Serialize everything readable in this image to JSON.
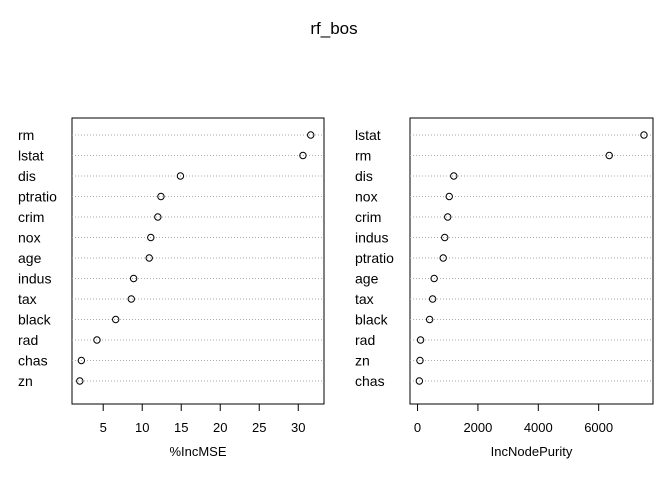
{
  "chart_data": {
    "type": "dotchart",
    "title": "rf_bos",
    "grid": "dotted-horizontal",
    "panels": [
      {
        "xlabel": "%IncMSE",
        "xticks": [
          5,
          10,
          15,
          20,
          25,
          30
        ],
        "xlim": [
          1.0,
          33.3
        ],
        "categories": [
          "rm",
          "lstat",
          "dis",
          "ptratio",
          "crim",
          "nox",
          "age",
          "indus",
          "tax",
          "black",
          "rad",
          "chas",
          "zn"
        ],
        "values": [
          31.6,
          30.6,
          14.9,
          12.4,
          12.0,
          11.1,
          10.9,
          8.9,
          8.6,
          6.6,
          4.2,
          2.2,
          2.0
        ]
      },
      {
        "xlabel": "IncNodePurity",
        "xticks": [
          0,
          2000,
          4000,
          6000
        ],
        "xlim": [
          -250,
          7800
        ],
        "categories": [
          "lstat",
          "rm",
          "dis",
          "nox",
          "crim",
          "indus",
          "ptratio",
          "age",
          "tax",
          "black",
          "rad",
          "zn",
          "chas"
        ],
        "values": [
          7500,
          6350,
          1200,
          1050,
          1000,
          900,
          850,
          550,
          500,
          400,
          100,
          80,
          60
        ]
      }
    ]
  }
}
